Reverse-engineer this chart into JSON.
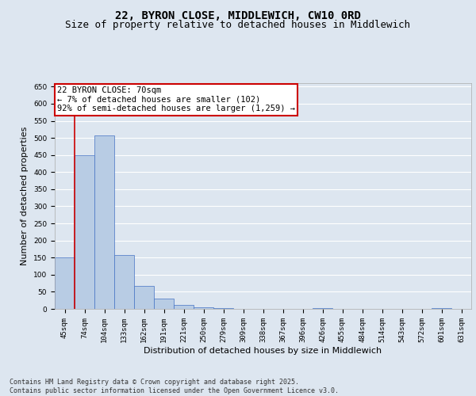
{
  "title_line1": "22, BYRON CLOSE, MIDDLEWICH, CW10 0RD",
  "title_line2": "Size of property relative to detached houses in Middlewich",
  "xlabel": "Distribution of detached houses by size in Middlewich",
  "ylabel": "Number of detached properties",
  "categories": [
    "45sqm",
    "74sqm",
    "104sqm",
    "133sqm",
    "162sqm",
    "191sqm",
    "221sqm",
    "250sqm",
    "279sqm",
    "309sqm",
    "338sqm",
    "367sqm",
    "396sqm",
    "426sqm",
    "455sqm",
    "484sqm",
    "514sqm",
    "543sqm",
    "572sqm",
    "601sqm",
    "631sqm"
  ],
  "values": [
    150,
    450,
    507,
    157,
    67,
    30,
    12,
    5,
    2,
    0,
    0,
    0,
    0,
    3,
    0,
    0,
    0,
    0,
    0,
    2,
    0
  ],
  "bar_color": "#b8cce4",
  "bar_edge_color": "#4472c4",
  "annotation_text": "22 BYRON CLOSE: 70sqm\n← 7% of detached houses are smaller (102)\n92% of semi-detached houses are larger (1,259) →",
  "annotation_box_color": "#ffffff",
  "annotation_box_edge": "#cc0000",
  "vline_color": "#cc0000",
  "ylim": [
    0,
    660
  ],
  "yticks": [
    0,
    50,
    100,
    150,
    200,
    250,
    300,
    350,
    400,
    450,
    500,
    550,
    600,
    650
  ],
  "background_color": "#dde6f0",
  "plot_bg_color": "#dde6f0",
  "grid_color": "#ffffff",
  "footnote": "Contains HM Land Registry data © Crown copyright and database right 2025.\nContains public sector information licensed under the Open Government Licence v3.0.",
  "title_fontsize": 10,
  "subtitle_fontsize": 9,
  "axis_label_fontsize": 8,
  "tick_fontsize": 6.5,
  "annotation_fontsize": 7.5,
  "footnote_fontsize": 6
}
